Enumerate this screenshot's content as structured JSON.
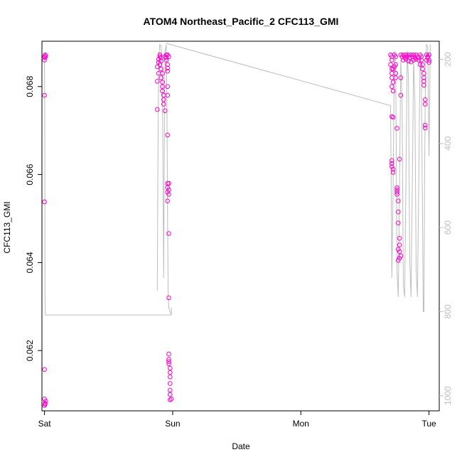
{
  "chart_data": {
    "type": "scatter",
    "title": "ATOM4 Northeast_Pacific_2 CFC113_GMI",
    "xlabel": "Date",
    "ylabel": "CFC113_GMI",
    "xlim": [
      -0.02,
      3.08
    ],
    "ylim": [
      0.06063,
      0.06903
    ],
    "x_ticks": [
      {
        "value": 0,
        "label": "Sat"
      },
      {
        "value": 1,
        "label": "Sun"
      },
      {
        "value": 2,
        "label": "Mon"
      },
      {
        "value": 3,
        "label": "Tue"
      }
    ],
    "y_ticks": [
      {
        "value": 0.062,
        "label": "0.062"
      },
      {
        "value": 0.064,
        "label": "0.064"
      },
      {
        "value": 0.066,
        "label": "0.066"
      },
      {
        "value": 0.068,
        "label": "0.068"
      }
    ],
    "y2_ticks": [
      {
        "value": 200,
        "label": "200"
      },
      {
        "value": 400,
        "label": "400"
      },
      {
        "value": 600,
        "label": "600"
      },
      {
        "value": 800,
        "label": "800"
      },
      {
        "value": 1000,
        "label": "1000"
      }
    ],
    "y2lim_reversed": [
      1036,
      157
    ],
    "grid": false,
    "series": [
      {
        "kind": "points",
        "color": "#ff00cc",
        "marker": "open-circle",
        "points": [
          [
            0.0,
            0.06868
          ],
          [
            0.005,
            0.06872
          ],
          [
            0.01,
            0.0687
          ],
          [
            0.0,
            0.0686
          ],
          [
            0.005,
            0.06866
          ],
          [
            0.0,
            0.0678
          ],
          [
            0.0,
            0.06538
          ],
          [
            0.0,
            0.06157
          ],
          [
            0.0,
            0.06075
          ],
          [
            0.005,
            0.0608
          ],
          [
            0.01,
            0.06085
          ],
          [
            0.0,
            0.0609
          ],
          [
            0.005,
            0.06078
          ],
          [
            0.88,
            0.06748
          ],
          [
            0.88,
            0.06812
          ],
          [
            0.89,
            0.0683
          ],
          [
            0.88,
            0.06845
          ],
          [
            0.89,
            0.06855
          ],
          [
            0.89,
            0.06862
          ],
          [
            0.9,
            0.06868
          ],
          [
            0.9,
            0.06872
          ],
          [
            0.91,
            0.06866
          ],
          [
            0.91,
            0.06858
          ],
          [
            0.9,
            0.0685
          ],
          [
            0.91,
            0.0684
          ],
          [
            0.92,
            0.0683
          ],
          [
            0.91,
            0.0682
          ],
          [
            0.92,
            0.0681
          ],
          [
            0.92,
            0.068
          ],
          [
            0.92,
            0.0679
          ],
          [
            0.93,
            0.0678
          ],
          [
            0.93,
            0.0677
          ],
          [
            0.93,
            0.0676
          ],
          [
            0.94,
            0.06745
          ],
          [
            0.94,
            0.06868
          ],
          [
            0.95,
            0.06872
          ],
          [
            0.95,
            0.06866
          ],
          [
            0.95,
            0.0686
          ],
          [
            0.96,
            0.0685
          ],
          [
            0.96,
            0.06842
          ],
          [
            0.96,
            0.06835
          ],
          [
            0.96,
            0.068
          ],
          [
            0.96,
            0.0678
          ],
          [
            0.96,
            0.0669
          ],
          [
            0.96,
            0.0658
          ],
          [
            0.96,
            0.0657
          ],
          [
            0.96,
            0.0656
          ],
          [
            0.97,
            0.0658
          ],
          [
            0.97,
            0.06565
          ],
          [
            0.97,
            0.06555
          ],
          [
            0.96,
            0.0654
          ],
          [
            0.97,
            0.06466
          ],
          [
            0.97,
            0.0632
          ],
          [
            0.97,
            0.06192
          ],
          [
            0.97,
            0.0618
          ],
          [
            0.97,
            0.06175
          ],
          [
            0.97,
            0.0617
          ],
          [
            0.98,
            0.0616
          ],
          [
            0.98,
            0.0615
          ],
          [
            0.98,
            0.0614
          ],
          [
            0.98,
            0.06125
          ],
          [
            0.98,
            0.0611
          ],
          [
            0.98,
            0.061
          ],
          [
            0.99,
            0.0609
          ],
          [
            0.98,
            0.06088
          ],
          [
            0.96,
            0.06872
          ],
          [
            0.97,
            0.06868
          ],
          [
            2.7,
            0.06872
          ],
          [
            2.71,
            0.06868
          ],
          [
            2.71,
            0.0686
          ],
          [
            2.7,
            0.0685
          ],
          [
            2.71,
            0.0684
          ],
          [
            2.71,
            0.0683
          ],
          [
            2.71,
            0.0682
          ],
          [
            2.72,
            0.0681
          ],
          [
            2.71,
            0.068
          ],
          [
            2.72,
            0.0679
          ],
          [
            2.71,
            0.06732
          ],
          [
            2.72,
            0.0673
          ],
          [
            2.71,
            0.06632
          ],
          [
            2.71,
            0.06625
          ],
          [
            2.71,
            0.06618
          ],
          [
            2.72,
            0.06612
          ],
          [
            2.72,
            0.06605
          ],
          [
            2.73,
            0.06872
          ],
          [
            2.74,
            0.06868
          ],
          [
            2.74,
            0.0685
          ],
          [
            2.74,
            0.0683
          ],
          [
            2.74,
            0.0682
          ],
          [
            2.75,
            0.06705
          ],
          [
            2.75,
            0.0657
          ],
          [
            2.75,
            0.06565
          ],
          [
            2.75,
            0.0656
          ],
          [
            2.75,
            0.06555
          ],
          [
            2.76,
            0.0654
          ],
          [
            2.76,
            0.06515
          ],
          [
            2.76,
            0.0649
          ],
          [
            2.77,
            0.06455
          ],
          [
            2.77,
            0.0644
          ],
          [
            2.77,
            0.06425
          ],
          [
            2.78,
            0.06415
          ],
          [
            2.77,
            0.0641
          ],
          [
            2.76,
            0.06405
          ],
          [
            2.76,
            0.0643
          ],
          [
            2.77,
            0.06635
          ],
          [
            2.78,
            0.0678
          ],
          [
            2.78,
            0.0682
          ],
          [
            2.78,
            0.06872
          ],
          [
            2.79,
            0.06868
          ],
          [
            2.8,
            0.06872
          ],
          [
            2.8,
            0.0686
          ],
          [
            2.81,
            0.06866
          ],
          [
            2.82,
            0.06872
          ],
          [
            2.83,
            0.06868
          ],
          [
            2.84,
            0.06872
          ],
          [
            2.85,
            0.06866
          ],
          [
            2.86,
            0.06872
          ],
          [
            2.87,
            0.06868
          ],
          [
            2.88,
            0.06872
          ],
          [
            2.89,
            0.06866
          ],
          [
            2.9,
            0.06872
          ],
          [
            2.91,
            0.06868
          ],
          [
            2.92,
            0.06866
          ],
          [
            2.93,
            0.06872
          ],
          [
            2.94,
            0.0686
          ],
          [
            2.95,
            0.0685
          ],
          [
            2.95,
            0.0684
          ],
          [
            2.96,
            0.0683
          ],
          [
            2.96,
            0.0682
          ],
          [
            2.96,
            0.06812
          ],
          [
            2.96,
            0.06803
          ],
          [
            2.97,
            0.0677
          ],
          [
            2.97,
            0.0676
          ],
          [
            2.97,
            0.06712
          ],
          [
            2.97,
            0.06706
          ],
          [
            2.98,
            0.06872
          ],
          [
            2.99,
            0.06868
          ],
          [
            3.0,
            0.06872
          ],
          [
            3.0,
            0.0686
          ],
          [
            3.0,
            0.06855
          ],
          [
            2.99,
            0.06866
          ],
          [
            2.98,
            0.0686
          ],
          [
            2.82,
            0.06862
          ],
          [
            2.84,
            0.06858
          ],
          [
            2.86,
            0.06856
          ],
          [
            2.88,
            0.0686
          ],
          [
            2.9,
            0.06862
          ],
          [
            2.72,
            0.0684
          ],
          [
            2.73,
            0.06845
          ],
          [
            2.94,
            0.06868
          ],
          [
            2.92,
            0.0686
          ],
          [
            2.93,
            0.0685
          ]
        ]
      },
      {
        "kind": "line",
        "color": "#bdbdbd",
        "axis": "y2",
        "segments": [
          [
            [
              0.0,
              200
            ],
            [
              0.002,
              310
            ],
            [
              0.004,
              760
            ],
            [
              0.006,
              808
            ],
            [
              0.99,
              808
            ],
            [
              0.99,
              790
            ]
          ],
          [
            [
              0.88,
              750
            ],
            [
              0.885,
              440
            ],
            [
              0.89,
              250
            ],
            [
              0.895,
              180
            ],
            [
              0.9,
              165
            ],
            [
              0.91,
              170
            ],
            [
              0.92,
              240
            ],
            [
              0.925,
              500
            ],
            [
              0.93,
              720
            ],
            [
              0.935,
              400
            ],
            [
              0.94,
              180
            ],
            [
              0.95,
              165
            ],
            [
              0.955,
              300
            ],
            [
              0.96,
              560
            ],
            [
              0.965,
              760
            ],
            [
              0.97,
              790
            ],
            [
              0.98,
              800
            ],
            [
              0.99,
              808
            ]
          ],
          [
            [
              0.95,
              162
            ],
            [
              2.7,
              310
            ]
          ],
          [
            [
              2.7,
              310
            ],
            [
              2.71,
              720
            ],
            [
              2.72,
              500
            ],
            [
              2.73,
              180
            ],
            [
              2.74,
              200
            ],
            [
              2.75,
              700
            ],
            [
              2.76,
              765
            ],
            [
              2.77,
              500
            ],
            [
              2.78,
              200
            ],
            [
              2.79,
              300
            ],
            [
              2.8,
              740
            ],
            [
              2.81,
              765
            ],
            [
              2.82,
              500
            ],
            [
              2.83,
              180
            ],
            [
              2.84,
              250
            ],
            [
              2.85,
              680
            ],
            [
              2.86,
              765
            ],
            [
              2.87,
              500
            ],
            [
              2.88,
              200
            ],
            [
              2.89,
              300
            ],
            [
              2.9,
              700
            ],
            [
              2.91,
              765
            ],
            [
              2.92,
              500
            ],
            [
              2.93,
              200
            ],
            [
              2.94,
              250
            ],
            [
              2.95,
              600
            ],
            [
              2.955,
              800
            ],
            [
              2.96,
              800
            ],
            [
              2.965,
              500
            ],
            [
              2.97,
              300
            ],
            [
              2.975,
              200
            ],
            [
              2.98,
              165
            ],
            [
              2.99,
              170
            ],
            [
              3.0,
              430
            ],
            [
              3.01,
              165
            ]
          ]
        ]
      }
    ]
  }
}
